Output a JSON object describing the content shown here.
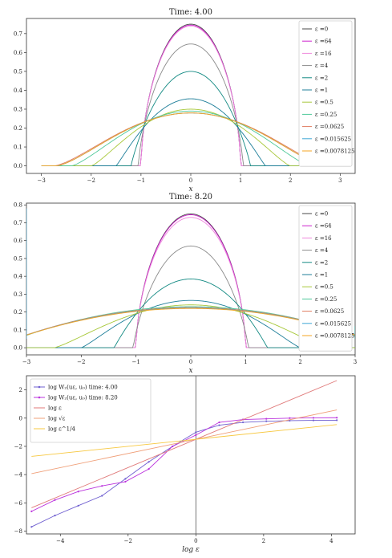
{
  "chart_data": [
    {
      "type": "line",
      "title": "Time: 4.00",
      "xlabel": "x",
      "ylabel": "",
      "xlim": [
        -3.3,
        3.3
      ],
      "ylim": [
        -0.04,
        0.78
      ],
      "xticks": [
        -3,
        -2,
        -1,
        0,
        1,
        2,
        3
      ],
      "yticks": [
        0.0,
        0.1,
        0.2,
        0.3,
        0.4,
        0.5,
        0.6,
        0.7
      ],
      "legend_position": "top-right",
      "colors": [
        "#4a4a4a",
        "#cc22cc",
        "#ee88dd",
        "#8a8a8a",
        "#138a83",
        "#1f7f9a",
        "#a8c83a",
        "#4fc99a",
        "#e07a5f",
        "#3fa7d6",
        "#f5a623"
      ],
      "series": [
        {
          "name": "ε =0",
          "support": 1.0,
          "peak": 0.75,
          "shape": 0.6
        },
        {
          "name": "ε =64",
          "support": 1.0,
          "peak": 0.745,
          "shape": 0.6
        },
        {
          "name": "ε =16",
          "support": 1.0,
          "peak": 0.74,
          "shape": 0.6
        },
        {
          "name": "ε =4",
          "support": 1.05,
          "peak": 0.645,
          "shape": 0.7
        },
        {
          "name": "ε =2",
          "support": 1.2,
          "peak": 0.5,
          "shape": 0.9
        },
        {
          "name": "ε =1",
          "support": 1.5,
          "peak": 0.355,
          "shape": 1.1
        },
        {
          "name": "ε =0.5",
          "support": 2.0,
          "peak": 0.3,
          "shape": 1.3
        },
        {
          "name": "ε =0.25",
          "support": 2.4,
          "peak": 0.29,
          "shape": 1.4
        },
        {
          "name": "ε =0.0625",
          "support": 2.75,
          "peak": 0.28,
          "shape": 1.5
        },
        {
          "name": "ε =0.015625",
          "support": 2.7,
          "peak": 0.28,
          "shape": 1.5
        },
        {
          "name": "ε =0.0078125",
          "support": 2.7,
          "peak": 0.28,
          "shape": 1.5
        }
      ]
    },
    {
      "type": "line",
      "title": "Time: 8.20",
      "xlabel": "x",
      "ylabel": "",
      "xlim": [
        -3.0,
        3.0
      ],
      "ylim": [
        -0.04,
        0.81
      ],
      "xticks": [
        -3,
        -2,
        -1,
        0,
        1,
        2,
        3
      ],
      "yticks": [
        0.0,
        0.1,
        0.2,
        0.3,
        0.4,
        0.5,
        0.6,
        0.7,
        0.8
      ],
      "legend_position": "top-right",
      "colors": [
        "#4a4a4a",
        "#cc22cc",
        "#ee88dd",
        "#8a8a8a",
        "#138a83",
        "#1f7f9a",
        "#a8c83a",
        "#4fc99a",
        "#e07a5f",
        "#3fa7d6",
        "#f5a623"
      ],
      "series": [
        {
          "name": "ε =0",
          "support": 1.0,
          "peak": 0.75,
          "shape": 0.6
        },
        {
          "name": "ε =64",
          "support": 1.0,
          "peak": 0.745,
          "shape": 0.6
        },
        {
          "name": "ε =16",
          "support": 1.0,
          "peak": 0.73,
          "shape": 0.6
        },
        {
          "name": "ε =4",
          "support": 1.05,
          "peak": 0.57,
          "shape": 0.8
        },
        {
          "name": "ε =2",
          "support": 1.4,
          "peak": 0.385,
          "shape": 1.0
        },
        {
          "name": "ε =1",
          "support": 2.0,
          "peak": 0.265,
          "shape": 1.2
        },
        {
          "name": "ε =0.5",
          "support": 2.5,
          "peak": 0.24,
          "shape": 1.3
        },
        {
          "name": "ε =0.25",
          "support": 2.8,
          "peak": 0.23,
          "shape": 1.4
        },
        {
          "name": "ε =0.0625",
          "support": 3.5,
          "peak": 0.225,
          "shape": 1.5
        },
        {
          "name": "ε =0.015625",
          "support": 3.5,
          "peak": 0.222,
          "shape": 1.5
        },
        {
          "name": "ε =0.0078125",
          "support": 3.5,
          "peak": 0.22,
          "shape": 1.5
        }
      ],
      "boundary_spike": {
        "left_value": 0.78,
        "right_value": 0.12
      }
    },
    {
      "type": "line",
      "title": "",
      "xlabel": "log ε",
      "ylabel": "",
      "xlim": [
        -5.0,
        4.7
      ],
      "ylim": [
        -8.2,
        3.0
      ],
      "xticks": [
        -4,
        -2,
        0,
        2,
        4
      ],
      "yticks": [
        -8,
        -6,
        -4,
        -2,
        0,
        2
      ],
      "vline_x": 0,
      "legend_position": "top-left",
      "series": [
        {
          "name": "log W₂(uε, u₀) time: 4.00",
          "color": "#6f5fd0",
          "marker": true,
          "x": [
            -4.85,
            -4.16,
            -3.47,
            -2.77,
            -2.08,
            -1.39,
            -0.69,
            0.0,
            0.69,
            1.39,
            2.08,
            2.77,
            3.47,
            4.16
          ],
          "y": [
            -7.7,
            -6.9,
            -6.2,
            -5.5,
            -4.3,
            -3.1,
            -2.0,
            -1.0,
            -0.5,
            -0.3,
            -0.22,
            -0.18,
            -0.16,
            -0.15
          ]
        },
        {
          "name": "log W₂(uε, u₀) time: 8.20",
          "color": "#bb33dd",
          "marker": true,
          "x": [
            -4.85,
            -4.16,
            -3.47,
            -2.77,
            -2.08,
            -1.39,
            -0.69,
            0.0,
            0.69,
            1.39,
            2.08,
            2.77,
            3.47,
            4.16
          ],
          "y": [
            -6.6,
            -5.8,
            -5.2,
            -4.8,
            -4.5,
            -3.6,
            -2.0,
            -1.2,
            -0.3,
            -0.1,
            -0.05,
            0.0,
            0.02,
            0.03
          ]
        },
        {
          "name": "log ε",
          "color": "#e07a7a",
          "marker": false,
          "x": [
            -4.85,
            4.16
          ],
          "y": [
            -6.35,
            2.66
          ]
        },
        {
          "name": "log √ε",
          "color": "#f0a07a",
          "marker": false,
          "x": [
            -4.85,
            4.16
          ],
          "y": [
            -3.93,
            0.58
          ]
        },
        {
          "name": "log ε^1/4",
          "color": "#f7c840",
          "marker": false,
          "x": [
            -4.85,
            4.16
          ],
          "y": [
            -2.71,
            -0.46
          ]
        }
      ]
    }
  ]
}
